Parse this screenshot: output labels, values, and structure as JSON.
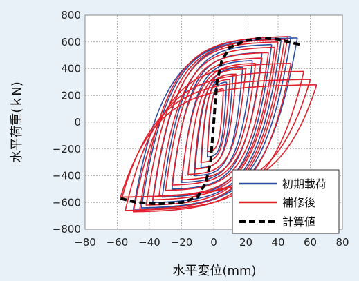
{
  "chart_data": {
    "type": "line",
    "xlabel": "水平変位(mm)",
    "ylabel": "水平荷重(ｋN)",
    "xlim": [
      -80,
      80
    ],
    "ylim": [
      -800,
      800
    ],
    "xticks": [
      -80,
      -60,
      -40,
      -20,
      0,
      20,
      40,
      60,
      80
    ],
    "yticks": [
      800,
      600,
      400,
      200,
      0,
      -200,
      -400,
      -600,
      -800
    ],
    "xtick_labels": [
      "−80",
      "−60",
      "−40",
      "−20",
      "0",
      "20",
      "40",
      "60",
      "80"
    ],
    "ytick_labels": [
      "800",
      "600",
      "400",
      "200",
      "0",
      "−200",
      "−400",
      "−600",
      "−800"
    ],
    "grid": true,
    "legend_position": "bottom-right",
    "colors": {
      "initial": "#2b4ea2",
      "repaired": "#e0202a",
      "calculated": "#000000"
    },
    "series": [
      {
        "name": "初期載荷",
        "style": "solid",
        "color": "#2b4ea2",
        "amplitudes": [
          [
            8,
            4,
            300,
            260
          ],
          [
            12,
            8,
            360,
            340
          ],
          [
            18,
            12,
            410,
            400
          ],
          [
            24,
            20,
            460,
            450
          ],
          [
            30,
            26,
            520,
            500
          ],
          [
            36,
            32,
            580,
            560
          ],
          [
            42,
            38,
            620,
            600
          ],
          [
            48,
            45,
            640,
            640
          ],
          [
            52,
            50,
            630,
            650
          ]
        ]
      },
      {
        "name": "補修後",
        "style": "solid",
        "color": "#e0202a",
        "amplitudes": [
          [
            6,
            4,
            250,
            220
          ],
          [
            10,
            8,
            320,
            300
          ],
          [
            14,
            12,
            360,
            350
          ],
          [
            20,
            16,
            400,
            390
          ],
          [
            26,
            20,
            440,
            430
          ],
          [
            30,
            26,
            480,
            470
          ],
          [
            34,
            30,
            520,
            510
          ],
          [
            38,
            34,
            560,
            550
          ],
          [
            40,
            38,
            600,
            580
          ],
          [
            44,
            42,
            620,
            620
          ],
          [
            46,
            46,
            640,
            650
          ],
          [
            48,
            50,
            440,
            670
          ],
          [
            56,
            55,
            380,
            660
          ],
          [
            64,
            58,
            280,
            560
          ],
          [
            60,
            57,
            320,
            560
          ]
        ]
      },
      {
        "name": "計算値",
        "style": "dashed",
        "color": "#000000",
        "x": [
          -58,
          -48,
          -35,
          -20,
          -10,
          -5,
          -2,
          0,
          2,
          5,
          10,
          20,
          30,
          40,
          50,
          54
        ],
        "y": [
          -570,
          -600,
          -610,
          -600,
          -560,
          -450,
          -300,
          0,
          300,
          460,
          560,
          610,
          630,
          620,
          590,
          580
        ]
      }
    ]
  }
}
